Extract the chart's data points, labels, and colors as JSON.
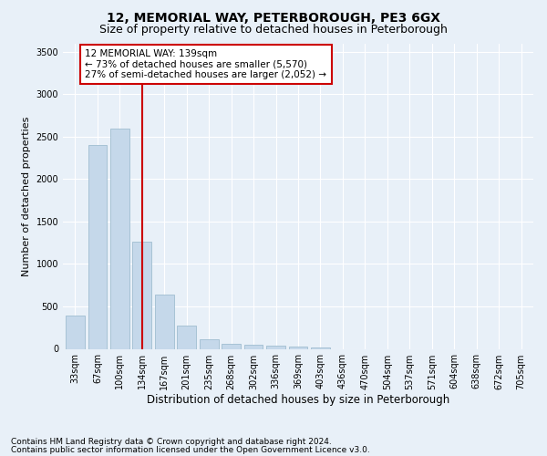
{
  "title": "12, MEMORIAL WAY, PETERBOROUGH, PE3 6GX",
  "subtitle": "Size of property relative to detached houses in Peterborough",
  "xlabel": "Distribution of detached houses by size in Peterborough",
  "ylabel": "Number of detached properties",
  "categories": [
    "33sqm",
    "67sqm",
    "100sqm",
    "134sqm",
    "167sqm",
    "201sqm",
    "235sqm",
    "268sqm",
    "302sqm",
    "336sqm",
    "369sqm",
    "403sqm",
    "436sqm",
    "470sqm",
    "504sqm",
    "537sqm",
    "571sqm",
    "604sqm",
    "638sqm",
    "672sqm",
    "705sqm"
  ],
  "values": [
    390,
    2400,
    2600,
    1260,
    640,
    270,
    110,
    58,
    50,
    35,
    25,
    20,
    0,
    0,
    0,
    0,
    0,
    0,
    0,
    0,
    0
  ],
  "bar_color": "#c5d8ea",
  "bar_edge_color": "#a0bdd0",
  "vline_x": 3.0,
  "vline_color": "#cc0000",
  "annotation_text": "12 MEMORIAL WAY: 139sqm\n← 73% of detached houses are smaller (5,570)\n27% of semi-detached houses are larger (2,052) →",
  "annotation_box_facecolor": "#ffffff",
  "annotation_box_edgecolor": "#cc0000",
  "ylim": [
    0,
    3600
  ],
  "yticks": [
    0,
    500,
    1000,
    1500,
    2000,
    2500,
    3000,
    3500
  ],
  "footer_line1": "Contains HM Land Registry data © Crown copyright and database right 2024.",
  "footer_line2": "Contains public sector information licensed under the Open Government Licence v3.0.",
  "background_color": "#e8f0f8",
  "plot_bg_color": "#e8f0f8",
  "title_fontsize": 10,
  "subtitle_fontsize": 9,
  "xlabel_fontsize": 8.5,
  "ylabel_fontsize": 8,
  "tick_fontsize": 7,
  "annot_fontsize": 7.5,
  "footer_fontsize": 6.5
}
